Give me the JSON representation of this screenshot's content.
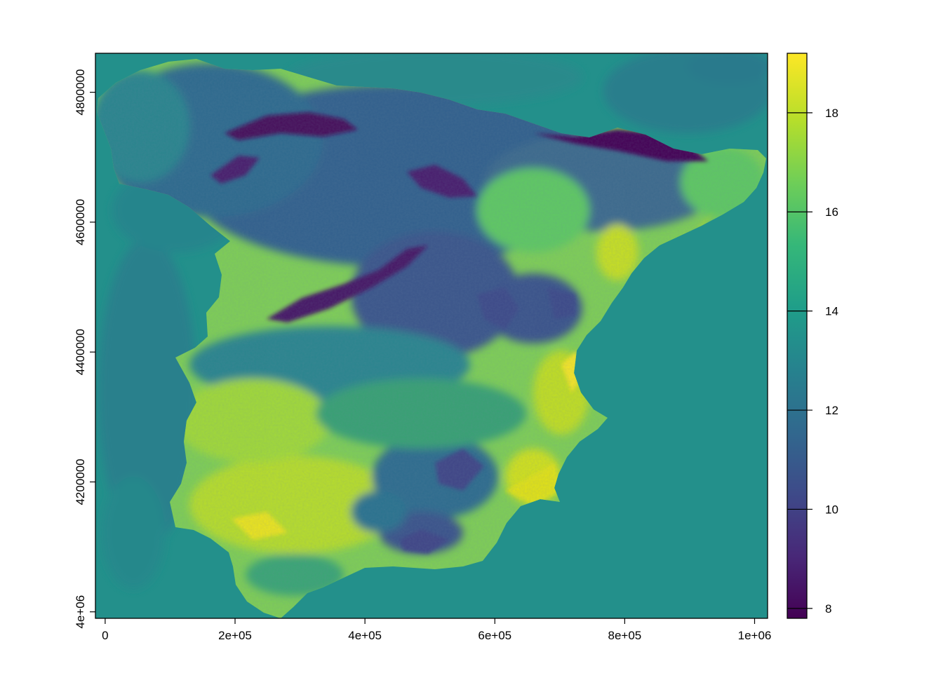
{
  "chart_data": {
    "type": "heatmap",
    "title": "",
    "xlabel": "",
    "ylabel": "",
    "xlim": [
      -15000,
      1020000
    ],
    "ylim": [
      3990000,
      4860000
    ],
    "x_ticks": [
      {
        "value": 0,
        "label": "0"
      },
      {
        "value": 200000,
        "label": "2e+05"
      },
      {
        "value": 400000,
        "label": "4e+05"
      },
      {
        "value": 600000,
        "label": "6e+05"
      },
      {
        "value": 800000,
        "label": "8e+05"
      },
      {
        "value": 1000000,
        "label": "1e+06"
      }
    ],
    "y_ticks": [
      {
        "value": 4000000,
        "label": "4e+06"
      },
      {
        "value": 4200000,
        "label": "4200000"
      },
      {
        "value": 4400000,
        "label": "4400000"
      },
      {
        "value": 4600000,
        "label": "4600000"
      },
      {
        "value": 4800000,
        "label": "4800000"
      }
    ],
    "colorbar": {
      "palette": "viridis",
      "range": [
        7.8,
        19.2
      ],
      "ticks": [
        8,
        10,
        12,
        14,
        16,
        18
      ],
      "colors": [
        "#440154",
        "#482878",
        "#3e4a89",
        "#31688e",
        "#26828e",
        "#1f9e89",
        "#35b779",
        "#6ece58",
        "#b5de2b",
        "#fde725"
      ]
    },
    "background_value": 13.8,
    "grid": false,
    "legend": "colorbar-right"
  }
}
